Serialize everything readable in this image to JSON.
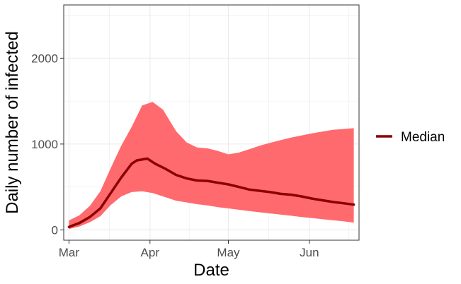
{
  "chart_data": {
    "type": "line",
    "title": "",
    "xlabel": "Date",
    "ylabel": "Daily number of infected",
    "x_ticks": [
      "Mar",
      "Apr",
      "May",
      "Jun"
    ],
    "y_ticks": [
      0,
      1000,
      2000
    ],
    "xlim": [
      "2020-02-28",
      "2020-06-20"
    ],
    "ylim": [
      -120,
      2620
    ],
    "grid": true,
    "legend_position": "right",
    "colors": {
      "median": "#8b0000",
      "band": "#ff6a6e",
      "grid": "#ebebeb",
      "panel_border": "#333333"
    },
    "series": [
      {
        "name": "Median",
        "x": [
          "2020-03-01",
          "2020-03-05",
          "2020-03-09",
          "2020-03-13",
          "2020-03-17",
          "2020-03-21",
          "2020-03-25",
          "2020-03-27",
          "2020-03-31",
          "2020-04-03",
          "2020-04-07",
          "2020-04-11",
          "2020-04-15",
          "2020-04-19",
          "2020-04-23",
          "2020-04-27",
          "2020-05-01",
          "2020-05-05",
          "2020-05-09",
          "2020-05-13",
          "2020-05-17",
          "2020-05-21",
          "2020-05-25",
          "2020-05-29",
          "2020-06-02",
          "2020-06-06",
          "2020-06-10",
          "2020-06-14",
          "2020-06-18"
        ],
        "values": [
          35,
          80,
          150,
          250,
          430,
          610,
          770,
          810,
          830,
          770,
          710,
          640,
          600,
          575,
          570,
          550,
          530,
          500,
          470,
          455,
          440,
          420,
          410,
          390,
          365,
          345,
          325,
          310,
          295
        ]
      },
      {
        "name": "",
        "x": [
          "2020-03-01",
          "2020-03-05",
          "2020-03-09",
          "2020-03-13",
          "2020-03-17",
          "2020-03-21",
          "2020-03-25",
          "2020-03-29",
          "2020-04-02",
          "2020-04-06",
          "2020-04-11",
          "2020-04-15",
          "2020-04-19",
          "2020-04-23",
          "2020-04-27",
          "2020-05-01",
          "2020-05-05",
          "2020-05-09",
          "2020-05-13",
          "2020-05-17",
          "2020-05-21",
          "2020-05-25",
          "2020-05-29",
          "2020-06-02",
          "2020-06-06",
          "2020-06-10",
          "2020-06-14",
          "2020-06-18"
        ],
        "lower": [
          10,
          40,
          90,
          160,
          290,
          390,
          440,
          450,
          430,
          390,
          340,
          320,
          300,
          285,
          265,
          250,
          235,
          220,
          205,
          192,
          178,
          165,
          150,
          138,
          125,
          112,
          100,
          85
        ],
        "upper": [
          110,
          170,
          280,
          450,
          720,
          980,
          1200,
          1450,
          1490,
          1400,
          1150,
          1020,
          960,
          950,
          920,
          880,
          900,
          940,
          980,
          1015,
          1045,
          1075,
          1100,
          1125,
          1145,
          1165,
          1175,
          1185
        ]
      }
    ]
  }
}
